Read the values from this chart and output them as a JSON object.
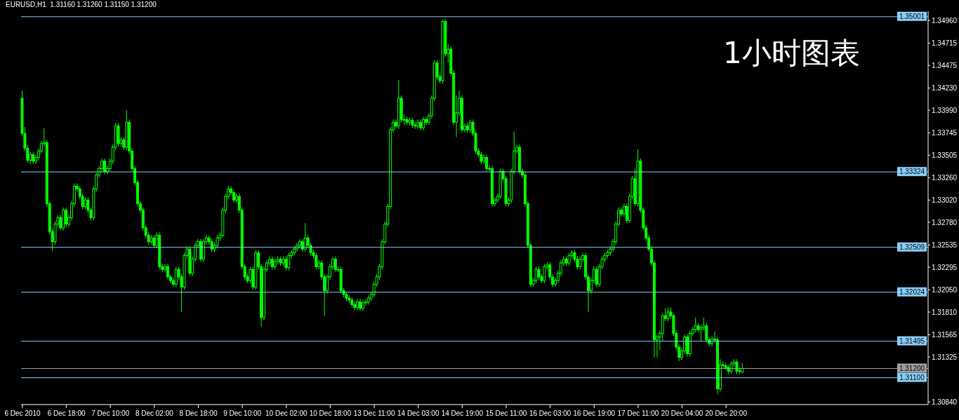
{
  "chart_data": {
    "type": "candlestick",
    "title": "EURUSD,H1  1.31160 1.31260 1.31150 1.31200",
    "annotations": [
      "1小时图表"
    ],
    "color": "#00ff00",
    "categories": [
      "6 Dec 2010",
      null,
      null,
      null,
      null,
      null,
      null,
      null,
      null,
      null,
      null,
      null,
      null,
      null,
      null,
      null,
      "6 Dec 18:00",
      null,
      null,
      null,
      null,
      null,
      null,
      null,
      null,
      null,
      null,
      null,
      null,
      null,
      null,
      null,
      "7 Dec 10:00",
      null,
      null,
      null,
      null,
      null,
      null,
      null,
      null,
      null,
      null,
      null,
      null,
      null,
      null,
      null,
      "8 Dec 02:00",
      null,
      null,
      null,
      null,
      null,
      null,
      null,
      null,
      null,
      null,
      null,
      null,
      null,
      null,
      null,
      "8 Dec 18:00",
      null,
      null,
      null,
      null,
      null,
      null,
      null,
      null,
      null,
      null,
      null,
      null,
      null,
      null,
      null,
      "9 Dec 10:00",
      null,
      null,
      null,
      null,
      null,
      null,
      null,
      null,
      null,
      null,
      null,
      null,
      null,
      null,
      null,
      "10 Dec 02:00",
      null,
      null,
      null,
      null,
      null,
      null,
      null,
      null,
      null,
      null,
      null,
      null,
      null,
      null,
      null,
      "10 Dec 18:00",
      null,
      null,
      null,
      null,
      null,
      null,
      null,
      null,
      null,
      null,
      null,
      null,
      null,
      null,
      null,
      "13 Dec 11:00",
      null,
      null,
      null,
      null,
      null,
      null,
      null,
      null,
      null,
      null,
      null,
      null,
      null,
      null,
      null,
      "14 Dec 03:00",
      null,
      null,
      null,
      null,
      null,
      null,
      null,
      null,
      null,
      null,
      null,
      null,
      null,
      null,
      null,
      "14 Dec 19:00",
      null,
      null,
      null,
      null,
      null,
      null,
      null,
      null,
      null,
      null,
      null,
      null,
      null,
      null,
      null,
      "15 Dec 11:00",
      null,
      null,
      null,
      null,
      null,
      null,
      null,
      null,
      null,
      null,
      null,
      null,
      null,
      null,
      null,
      "16 Dec 03:00",
      null,
      null,
      null,
      null,
      null,
      null,
      null,
      null,
      null,
      null,
      null,
      null,
      null,
      null,
      null,
      "16 Dec 19:00",
      null,
      null,
      null,
      null,
      null,
      null,
      null,
      null,
      null,
      null,
      null,
      null,
      null,
      null,
      null,
      "17 Dec 11:00",
      null,
      null,
      null,
      null,
      null,
      null,
      null,
      null,
      null,
      null,
      null,
      null,
      null,
      null,
      null,
      "20 Dec 04:00",
      null,
      null,
      null,
      null,
      null,
      null,
      null,
      null,
      null,
      null,
      null,
      null,
      null,
      null,
      null,
      "20 Dec 20:00",
      null,
      null,
      null,
      null,
      null,
      null,
      null,
      null,
      null,
      null,
      null,
      null,
      null,
      null,
      null,
      null,
      null,
      null,
      null,
      null,
      null,
      null,
      null,
      null,
      null,
      null,
      null,
      null,
      null,
      null,
      null,
      null,
      null,
      null,
      null,
      null,
      null,
      null,
      null,
      null,
      null,
      null,
      null,
      null,
      null,
      null,
      null,
      null,
      null,
      null,
      null,
      null,
      null,
      null,
      null,
      null,
      null,
      null,
      null,
      null,
      null,
      null,
      null,
      null,
      null,
      null,
      null,
      null,
      null,
      null,
      null,
      null,
      null
    ],
    "ohlc": [
      [
        1.3412,
        1.342,
        1.3371,
        1.3374
      ],
      [
        1.3374,
        1.3381,
        1.3355,
        1.3358
      ],
      [
        1.3358,
        1.3361,
        1.3342,
        1.3345
      ],
      [
        1.3345,
        1.3354,
        1.3341,
        1.3351
      ],
      [
        1.3351,
        1.3354,
        1.3341,
        1.3344
      ],
      [
        1.3344,
        1.3351,
        1.3341,
        1.3348
      ],
      [
        1.3348,
        1.3358,
        1.3345,
        1.3355
      ],
      [
        1.3355,
        1.3366,
        1.3352,
        1.3363
      ],
      [
        1.3363,
        1.338,
        1.336,
        1.3364
      ],
      [
        1.3364,
        1.3367,
        1.3295,
        1.3298
      ],
      [
        1.3298,
        1.3301,
        1.3265,
        1.3268
      ],
      [
        1.3268,
        1.3271,
        1.3247,
        1.3257
      ],
      [
        1.3257,
        1.3279,
        1.3254,
        1.3276
      ],
      [
        1.3276,
        1.3286,
        1.3273,
        1.3283
      ],
      [
        1.3283,
        1.3286,
        1.3269,
        1.3272
      ],
      [
        1.3272,
        1.3294,
        1.3269,
        1.3291
      ],
      [
        1.3291,
        1.3294,
        1.3273,
        1.3276
      ],
      [
        1.3276,
        1.3286,
        1.3273,
        1.3283
      ],
      [
        1.3283,
        1.3301,
        1.328,
        1.3298
      ],
      [
        1.3298,
        1.332,
        1.3295,
        1.3317
      ],
      [
        1.3317,
        1.332,
        1.3311,
        1.3314
      ],
      [
        1.3314,
        1.3317,
        1.3303,
        1.3306
      ],
      [
        1.3306,
        1.3309,
        1.3292,
        1.3295
      ],
      [
        1.3295,
        1.3305,
        1.3292,
        1.3302
      ],
      [
        1.3302,
        1.3305,
        1.3288,
        1.3291
      ],
      [
        1.3291,
        1.3294,
        1.328,
        1.3283
      ],
      [
        1.3283,
        1.3317,
        1.328,
        1.3314
      ],
      [
        1.3314,
        1.3332,
        1.3311,
        1.3329
      ],
      [
        1.3329,
        1.3339,
        1.3326,
        1.3336
      ],
      [
        1.3336,
        1.3347,
        1.3333,
        1.3344
      ],
      [
        1.3344,
        1.3347,
        1.333,
        1.3333
      ],
      [
        1.3333,
        1.3339,
        1.333,
        1.3336
      ],
      [
        1.3336,
        1.3347,
        1.3333,
        1.3344
      ],
      [
        1.3344,
        1.3362,
        1.3341,
        1.3359
      ],
      [
        1.3359,
        1.3385,
        1.3356,
        1.3382
      ],
      [
        1.3382,
        1.3385,
        1.336,
        1.3363
      ],
      [
        1.3363,
        1.337,
        1.336,
        1.3367
      ],
      [
        1.3367,
        1.337,
        1.3356,
        1.3359
      ],
      [
        1.3359,
        1.3399,
        1.3356,
        1.3386
      ],
      [
        1.3386,
        1.3389,
        1.3352,
        1.3355
      ],
      [
        1.3355,
        1.3358,
        1.3333,
        1.3336
      ],
      [
        1.3336,
        1.3339,
        1.3318,
        1.3321
      ],
      [
        1.3321,
        1.3324,
        1.3295,
        1.3298
      ],
      [
        1.3298,
        1.3301,
        1.3288,
        1.3291
      ],
      [
        1.3291,
        1.3294,
        1.3269,
        1.3272
      ],
      [
        1.3272,
        1.3275,
        1.3261,
        1.3264
      ],
      [
        1.3264,
        1.3267,
        1.3254,
        1.3257
      ],
      [
        1.3257,
        1.3264,
        1.3254,
        1.3261
      ],
      [
        1.3261,
        1.3264,
        1.325,
        1.3253
      ],
      [
        1.3253,
        1.3267,
        1.325,
        1.3264
      ],
      [
        1.3264,
        1.3267,
        1.3227,
        1.323
      ],
      [
        1.323,
        1.3233,
        1.3224,
        1.3227
      ],
      [
        1.3227,
        1.3233,
        1.3224,
        1.323
      ],
      [
        1.323,
        1.3233,
        1.3216,
        1.3219
      ],
      [
        1.3219,
        1.3222,
        1.3212,
        1.3215
      ],
      [
        1.3215,
        1.3218,
        1.3208,
        1.3211
      ],
      [
        1.3211,
        1.323,
        1.3208,
        1.3227
      ],
      [
        1.3227,
        1.323,
        1.3216,
        1.3219
      ],
      [
        1.3219,
        1.3222,
        1.3181,
        1.3208
      ],
      [
        1.3208,
        1.3245,
        1.3205,
        1.3242
      ],
      [
        1.3242,
        1.3252,
        1.3239,
        1.3249
      ],
      [
        1.3249,
        1.3252,
        1.322,
        1.3223
      ],
      [
        1.3223,
        1.3241,
        1.322,
        1.3238
      ],
      [
        1.3238,
        1.3256,
        1.3235,
        1.3253
      ],
      [
        1.3253,
        1.326,
        1.325,
        1.3257
      ],
      [
        1.3257,
        1.326,
        1.3235,
        1.3238
      ],
      [
        1.3238,
        1.326,
        1.3235,
        1.3257
      ],
      [
        1.3257,
        1.3264,
        1.3254,
        1.3261
      ],
      [
        1.3261,
        1.3264,
        1.3254,
        1.3257
      ],
      [
        1.3257,
        1.326,
        1.3246,
        1.3249
      ],
      [
        1.3249,
        1.3256,
        1.3246,
        1.3253
      ],
      [
        1.3253,
        1.3264,
        1.325,
        1.3261
      ],
      [
        1.3261,
        1.3267,
        1.3258,
        1.3264
      ],
      [
        1.3264,
        1.3294,
        1.3261,
        1.3291
      ],
      [
        1.3291,
        1.3309,
        1.3288,
        1.3306
      ],
      [
        1.3306,
        1.3317,
        1.3303,
        1.3314
      ],
      [
        1.3314,
        1.3317,
        1.3307,
        1.331
      ],
      [
        1.331,
        1.3313,
        1.3299,
        1.3302
      ],
      [
        1.3302,
        1.3309,
        1.3299,
        1.3306
      ],
      [
        1.3306,
        1.3309,
        1.3288,
        1.3291
      ],
      [
        1.3291,
        1.3294,
        1.3227,
        1.323
      ],
      [
        1.323,
        1.3233,
        1.3216,
        1.3219
      ],
      [
        1.3219,
        1.3222,
        1.3212,
        1.3215
      ],
      [
        1.3215,
        1.323,
        1.3212,
        1.3227
      ],
      [
        1.3227,
        1.323,
        1.3205,
        1.3208
      ],
      [
        1.3208,
        1.3248,
        1.3205,
        1.3245
      ],
      [
        1.3245,
        1.3248,
        1.3227,
        1.323
      ],
      [
        1.323,
        1.3233,
        1.3165,
        1.3175
      ],
      [
        1.3175,
        1.323,
        1.3172,
        1.3227
      ],
      [
        1.3227,
        1.3237,
        1.3224,
        1.3234
      ],
      [
        1.3234,
        1.3241,
        1.3231,
        1.3238
      ],
      [
        1.3238,
        1.3241,
        1.3227,
        1.323
      ],
      [
        1.323,
        1.3239,
        1.3227,
        1.3236
      ],
      [
        1.3236,
        1.3241,
        1.3233,
        1.3238
      ],
      [
        1.3238,
        1.3241,
        1.3231,
        1.3234
      ],
      [
        1.3234,
        1.3241,
        1.3231,
        1.3238
      ],
      [
        1.3238,
        1.3241,
        1.3226,
        1.3229
      ],
      [
        1.3229,
        1.3245,
        1.3226,
        1.3242
      ],
      [
        1.3242,
        1.3248,
        1.3239,
        1.3245
      ],
      [
        1.3245,
        1.3252,
        1.3242,
        1.3249
      ],
      [
        1.3249,
        1.3256,
        1.3246,
        1.3253
      ],
      [
        1.3253,
        1.326,
        1.325,
        1.3257
      ],
      [
        1.3257,
        1.326,
        1.3246,
        1.3249
      ],
      [
        1.3249,
        1.3277,
        1.3246,
        1.3261
      ],
      [
        1.3261,
        1.3264,
        1.325,
        1.3253
      ],
      [
        1.3253,
        1.3256,
        1.3242,
        1.3245
      ],
      [
        1.3245,
        1.3248,
        1.3239,
        1.3242
      ],
      [
        1.3242,
        1.3245,
        1.3227,
        1.323
      ],
      [
        1.323,
        1.3237,
        1.3227,
        1.3234
      ],
      [
        1.3234,
        1.3237,
        1.3216,
        1.3219
      ],
      [
        1.3219,
        1.3222,
        1.3177,
        1.3204
      ],
      [
        1.3204,
        1.3222,
        1.3201,
        1.3219
      ],
      [
        1.3219,
        1.3233,
        1.3216,
        1.323
      ],
      [
        1.323,
        1.3241,
        1.3227,
        1.3238
      ],
      [
        1.3238,
        1.3241,
        1.3224,
        1.3227
      ],
      [
        1.3227,
        1.323,
        1.3224,
        1.3227
      ],
      [
        1.3227,
        1.323,
        1.3201,
        1.3204
      ],
      [
        1.3204,
        1.3207,
        1.3197,
        1.32
      ],
      [
        1.32,
        1.3203,
        1.3193,
        1.3196
      ],
      [
        1.3196,
        1.3199,
        1.3191,
        1.3194
      ],
      [
        1.3194,
        1.3197,
        1.3186,
        1.3189
      ],
      [
        1.3189,
        1.3192,
        1.3183,
        1.3186
      ],
      [
        1.3186,
        1.3195,
        1.3183,
        1.3192
      ],
      [
        1.3192,
        1.3195,
        1.3182,
        1.3185
      ],
      [
        1.3185,
        1.3194,
        1.3182,
        1.3191
      ],
      [
        1.3191,
        1.3195,
        1.3188,
        1.3192
      ],
      [
        1.3192,
        1.3199,
        1.3189,
        1.3196
      ],
      [
        1.3196,
        1.3203,
        1.3193,
        1.32
      ],
      [
        1.32,
        1.3214,
        1.3197,
        1.3211
      ],
      [
        1.3211,
        1.3222,
        1.3208,
        1.3219
      ],
      [
        1.3219,
        1.3233,
        1.3216,
        1.323
      ],
      [
        1.323,
        1.326,
        1.3227,
        1.3257
      ],
      [
        1.3257,
        1.3279,
        1.3254,
        1.3276
      ],
      [
        1.3276,
        1.3298,
        1.3273,
        1.3295
      ],
      [
        1.3295,
        1.3381,
        1.3292,
        1.3378
      ],
      [
        1.3378,
        1.3389,
        1.3375,
        1.3386
      ],
      [
        1.3386,
        1.3389,
        1.3379,
        1.3382
      ],
      [
        1.3382,
        1.3432,
        1.3379,
        1.3412
      ],
      [
        1.3412,
        1.3415,
        1.3386,
        1.3389
      ],
      [
        1.3389,
        1.3395,
        1.3383,
        1.3389
      ],
      [
        1.3389,
        1.3392,
        1.3383,
        1.3386
      ],
      [
        1.3386,
        1.3391,
        1.3383,
        1.3388
      ],
      [
        1.3388,
        1.3391,
        1.338,
        1.3383
      ],
      [
        1.3383,
        1.3386,
        1.3379,
        1.3382
      ],
      [
        1.3382,
        1.3389,
        1.3379,
        1.3386
      ],
      [
        1.3386,
        1.3389,
        1.3377,
        1.338
      ],
      [
        1.338,
        1.3392,
        1.3377,
        1.3389
      ],
      [
        1.3389,
        1.3392,
        1.3383,
        1.3386
      ],
      [
        1.3386,
        1.3396,
        1.3383,
        1.3393
      ],
      [
        1.3393,
        1.3415,
        1.339,
        1.3412
      ],
      [
        1.3412,
        1.3453,
        1.3409,
        1.345
      ],
      [
        1.345,
        1.3453,
        1.3432,
        1.3435
      ],
      [
        1.3435,
        1.3438,
        1.3428,
        1.3431
      ],
      [
        1.3431,
        1.3497,
        1.3428,
        1.3495
      ],
      [
        1.3495,
        1.3497,
        1.3457,
        1.346
      ],
      [
        1.346,
        1.347,
        1.345,
        1.3465
      ],
      [
        1.3465,
        1.3468,
        1.3436,
        1.3439
      ],
      [
        1.3439,
        1.3442,
        1.3383,
        1.3386
      ],
      [
        1.3386,
        1.3415,
        1.337,
        1.3396
      ],
      [
        1.3396,
        1.342,
        1.3393,
        1.3412
      ],
      [
        1.3412,
        1.3415,
        1.3375,
        1.3378
      ],
      [
        1.3378,
        1.3385,
        1.3375,
        1.3382
      ],
      [
        1.3382,
        1.3385,
        1.3375,
        1.3378
      ],
      [
        1.3378,
        1.3389,
        1.3375,
        1.3386
      ],
      [
        1.3386,
        1.3389,
        1.3371,
        1.3374
      ],
      [
        1.3374,
        1.3377,
        1.3352,
        1.3355
      ],
      [
        1.3355,
        1.3358,
        1.3348,
        1.3351
      ],
      [
        1.3351,
        1.3354,
        1.3341,
        1.3344
      ],
      [
        1.3344,
        1.3351,
        1.3341,
        1.3348
      ],
      [
        1.3348,
        1.3351,
        1.3333,
        1.3336
      ],
      [
        1.3336,
        1.3339,
        1.3333,
        1.3336
      ],
      [
        1.3336,
        1.3339,
        1.3295,
        1.3298
      ],
      [
        1.3298,
        1.3305,
        1.3295,
        1.3302
      ],
      [
        1.3302,
        1.3309,
        1.3299,
        1.3306
      ],
      [
        1.3306,
        1.3336,
        1.3303,
        1.3333
      ],
      [
        1.3333,
        1.3336,
        1.3322,
        1.3325
      ],
      [
        1.3325,
        1.3328,
        1.3295,
        1.3298
      ],
      [
        1.3298,
        1.3305,
        1.3295,
        1.3302
      ],
      [
        1.3302,
        1.3336,
        1.3299,
        1.3333
      ],
      [
        1.3333,
        1.3376,
        1.333,
        1.3355
      ],
      [
        1.3355,
        1.3362,
        1.3352,
        1.3359
      ],
      [
        1.3359,
        1.3362,
        1.333,
        1.3333
      ],
      [
        1.3333,
        1.3336,
        1.3326,
        1.3329
      ],
      [
        1.3329,
        1.3332,
        1.3295,
        1.3298
      ],
      [
        1.3298,
        1.3301,
        1.325,
        1.3253
      ],
      [
        1.3253,
        1.3256,
        1.3208,
        1.3211
      ],
      [
        1.3211,
        1.3218,
        1.3208,
        1.3215
      ],
      [
        1.3215,
        1.323,
        1.3212,
        1.3227
      ],
      [
        1.3227,
        1.323,
        1.3216,
        1.3219
      ],
      [
        1.3219,
        1.3222,
        1.3212,
        1.3215
      ],
      [
        1.3215,
        1.3233,
        1.3212,
        1.323
      ],
      [
        1.323,
        1.3235,
        1.3227,
        1.3232
      ],
      [
        1.3232,
        1.3235,
        1.3216,
        1.3219
      ],
      [
        1.3219,
        1.3222,
        1.3208,
        1.3211
      ],
      [
        1.3211,
        1.3218,
        1.3208,
        1.3215
      ],
      [
        1.3215,
        1.3226,
        1.3212,
        1.3223
      ],
      [
        1.3223,
        1.3237,
        1.322,
        1.3234
      ],
      [
        1.3234,
        1.3241,
        1.3231,
        1.3238
      ],
      [
        1.3238,
        1.3241,
        1.3231,
        1.3234
      ],
      [
        1.3234,
        1.3245,
        1.3231,
        1.3242
      ],
      [
        1.3242,
        1.3248,
        1.3239,
        1.3245
      ],
      [
        1.3245,
        1.3248,
        1.3235,
        1.3238
      ],
      [
        1.3238,
        1.3241,
        1.3227,
        1.323
      ],
      [
        1.323,
        1.3241,
        1.3227,
        1.3238
      ],
      [
        1.3238,
        1.3245,
        1.3235,
        1.3242
      ],
      [
        1.3242,
        1.3245,
        1.3216,
        1.3219
      ],
      [
        1.3219,
        1.3222,
        1.3181,
        1.3204
      ],
      [
        1.3204,
        1.3218,
        1.3201,
        1.3215
      ],
      [
        1.3215,
        1.323,
        1.3212,
        1.3227
      ],
      [
        1.3227,
        1.323,
        1.3208,
        1.3211
      ],
      [
        1.3211,
        1.3233,
        1.3208,
        1.323
      ],
      [
        1.323,
        1.3241,
        1.3227,
        1.3238
      ],
      [
        1.3238,
        1.3245,
        1.3235,
        1.3242
      ],
      [
        1.3242,
        1.3248,
        1.3239,
        1.3245
      ],
      [
        1.3245,
        1.3252,
        1.3242,
        1.3249
      ],
      [
        1.3249,
        1.326,
        1.3246,
        1.3257
      ],
      [
        1.3257,
        1.3279,
        1.3254,
        1.3276
      ],
      [
        1.3276,
        1.3294,
        1.3273,
        1.3291
      ],
      [
        1.3291,
        1.3294,
        1.3284,
        1.3287
      ],
      [
        1.3287,
        1.3298,
        1.3284,
        1.3295
      ],
      [
        1.3295,
        1.3298,
        1.3277,
        1.328
      ],
      [
        1.328,
        1.3309,
        1.3277,
        1.3306
      ],
      [
        1.3306,
        1.3328,
        1.3303,
        1.3325
      ],
      [
        1.3325,
        1.3336,
        1.3295,
        1.3298
      ],
      [
        1.3298,
        1.3357,
        1.3295,
        1.3344
      ],
      [
        1.3344,
        1.3347,
        1.3288,
        1.3291
      ],
      [
        1.3291,
        1.3294,
        1.3269,
        1.3272
      ],
      [
        1.3272,
        1.3275,
        1.3258,
        1.3261
      ],
      [
        1.3261,
        1.3264,
        1.3246,
        1.3249
      ],
      [
        1.3249,
        1.3252,
        1.3231,
        1.3234
      ],
      [
        1.3234,
        1.3237,
        1.3132,
        1.3151
      ],
      [
        1.3151,
        1.3157,
        1.3132,
        1.3154
      ],
      [
        1.3154,
        1.3161,
        1.314,
        1.3158
      ],
      [
        1.3158,
        1.318,
        1.315,
        1.3177
      ],
      [
        1.3177,
        1.3185,
        1.3171,
        1.3174
      ],
      [
        1.3174,
        1.3186,
        1.3171,
        1.3181
      ],
      [
        1.3181,
        1.3186,
        1.3174,
        1.3177
      ],
      [
        1.3177,
        1.318,
        1.3155,
        1.3158
      ],
      [
        1.3158,
        1.3161,
        1.314,
        1.3143
      ],
      [
        1.3143,
        1.3146,
        1.3128,
        1.3132
      ],
      [
        1.3132,
        1.3142,
        1.3129,
        1.3139
      ],
      [
        1.3139,
        1.3157,
        1.3136,
        1.3154
      ],
      [
        1.3154,
        1.3157,
        1.3133,
        1.3136
      ],
      [
        1.3136,
        1.3161,
        1.3133,
        1.3158
      ],
      [
        1.3158,
        1.3165,
        1.3155,
        1.3162
      ],
      [
        1.3162,
        1.3175,
        1.3159,
        1.3166
      ],
      [
        1.3166,
        1.3169,
        1.3159,
        1.3162
      ],
      [
        1.3162,
        1.3167,
        1.315,
        1.3164
      ],
      [
        1.3164,
        1.3175,
        1.3161,
        1.3166
      ],
      [
        1.3166,
        1.3169,
        1.3148,
        1.3151
      ],
      [
        1.3151,
        1.3154,
        1.3144,
        1.3147
      ],
      [
        1.3147,
        1.3155,
        1.3144,
        1.3152
      ],
      [
        1.3152,
        1.316,
        1.3148,
        1.3151
      ],
      [
        1.3151,
        1.3154,
        1.3092,
        1.3098
      ],
      [
        1.3098,
        1.313,
        1.3095,
        1.3124
      ],
      [
        1.3124,
        1.3128,
        1.312,
        1.3123
      ],
      [
        1.3123,
        1.3126,
        1.3118,
        1.3121
      ],
      [
        1.3121,
        1.3124,
        1.3114,
        1.3117
      ],
      [
        1.3117,
        1.3128,
        1.3114,
        1.3125
      ],
      [
        1.3125,
        1.313,
        1.3122,
        1.3127
      ],
      [
        1.3127,
        1.313,
        1.3114,
        1.3117
      ],
      [
        1.3117,
        1.3121,
        1.3114,
        1.3118
      ],
      [
        1.3116,
        1.3126,
        1.3115,
        1.312
      ],
      null,
      null,
      null,
      null,
      null,
      null,
      null,
      null,
      null,
      null,
      null,
      null,
      null,
      null,
      null,
      null,
      null,
      null,
      null,
      null,
      null,
      null,
      null,
      null,
      null,
      null,
      null,
      null,
      null,
      null,
      null,
      null,
      null,
      null,
      null,
      null,
      null,
      null,
      null,
      null,
      null,
      null,
      null,
      null,
      null,
      null,
      null,
      null,
      null,
      null,
      null,
      null,
      null,
      null,
      null,
      null,
      null,
      null,
      null,
      null,
      null,
      null,
      null,
      null,
      null,
      null,
      null
    ],
    "ylim": [
      1.3081,
      1.3506
    ],
    "yticks": [
      {
        "value": 1.3496,
        "label": "1.34960"
      },
      1.34715,
      1.34475,
      {
        "value": 1.3423,
        "label": "1.34230"
      },
      {
        "value": 1.3399,
        "label": "1.33990"
      },
      1.33745,
      1.33505,
      {
        "value": 1.3326,
        "label": "1.33260"
      },
      {
        "value": 1.3302,
        "label": "1.33020"
      },
      {
        "value": 1.3278,
        "label": "1.32780"
      },
      1.32535,
      1.32295,
      {
        "value": 1.3205,
        "label": "1.32050"
      },
      {
        "value": 1.3181,
        "label": "1.31810"
      },
      1.31565,
      1.31325,
      {
        "value": 1.3084,
        "label": "1.30840"
      }
    ],
    "ref_lines": [
      {
        "axis": "y",
        "value": 1.35001,
        "label": "1.35001",
        "color": "#87cefa"
      },
      {
        "axis": "y",
        "value": 1.33324,
        "label": "1.33324",
        "color": "#87cefa"
      },
      {
        "axis": "y",
        "value": 1.32509,
        "label": "1.32509",
        "color": "#87cefa"
      },
      {
        "axis": "y",
        "value": 1.32024,
        "label": "1.32024",
        "color": "#87cefa"
      },
      {
        "axis": "y",
        "value": 1.31495,
        "label": "1.31495",
        "color": "#87cefa"
      },
      {
        "axis": "y",
        "value": 1.312,
        "label": "1.31200",
        "color": "#a0a0a0"
      },
      {
        "axis": "y",
        "value": 1.311,
        "label": "1.31100",
        "color": "#87cefa"
      }
    ]
  }
}
